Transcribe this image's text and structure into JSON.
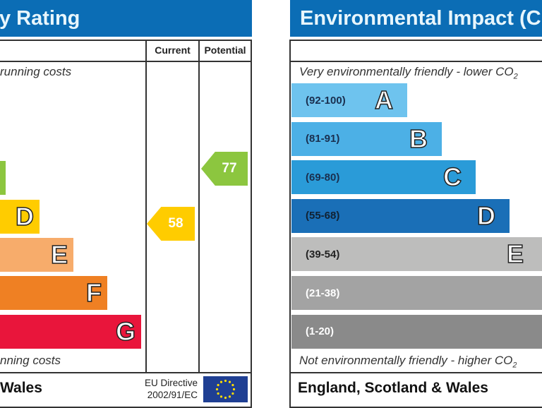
{
  "chart_data": [
    {
      "type": "bar",
      "title": "y Rating",
      "columns": [
        "Current",
        "Potential"
      ],
      "top_note": "running costs",
      "bottom_note": "nning costs",
      "bands": [
        {
          "letter": "",
          "color": "#8cc63f"
        },
        {
          "letter": "D",
          "color": "#ffcc00"
        },
        {
          "letter": "E",
          "color": "#f7ac6b"
        },
        {
          "letter": "F",
          "color": "#ef8023"
        },
        {
          "letter": "G",
          "color": "#e9153b"
        }
      ],
      "current": {
        "value": "58",
        "color": "#ffcc00"
      },
      "potential": {
        "value": "77",
        "color": "#8cc63f"
      },
      "footer": {
        "region": "Wales",
        "directive": "EU Directive",
        "directive_code": "2002/91/EC"
      }
    },
    {
      "type": "bar",
      "title": "Environmental Impact (C",
      "top_note": "Very environmentally friendly - lower CO",
      "top_sub": "2",
      "bottom_note": "Not environmentally friendly - higher CO",
      "bottom_sub": "2",
      "bands": [
        {
          "range": "(92-100)",
          "letter": "A",
          "color": "#6ec3ee"
        },
        {
          "range": "(81-91)",
          "letter": "B",
          "color": "#4cb0e6"
        },
        {
          "range": "(69-80)",
          "letter": "C",
          "color": "#2a9bd8"
        },
        {
          "range": "(55-68)",
          "letter": "D",
          "color": "#1a6fb7"
        },
        {
          "range": "(39-54)",
          "letter": "E",
          "color": "#bdbdbc"
        },
        {
          "range": "(21-38)",
          "letter": "",
          "color": "#a3a3a3"
        },
        {
          "range": "(1-20)",
          "letter": "",
          "color": "#8a8a8a"
        }
      ],
      "footer": {
        "region": "England, Scotland & Wales"
      }
    }
  ]
}
